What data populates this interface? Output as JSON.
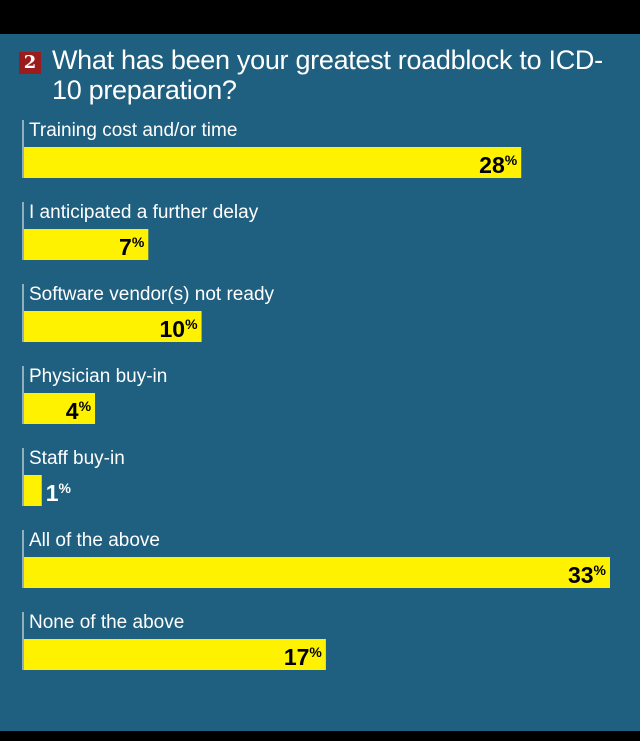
{
  "question": {
    "number": "2",
    "title": "What has been your greatest roadblock to ICD-10 preparation?"
  },
  "colors": {
    "background": "#1f5f7f",
    "bar": "#fff200",
    "band": "#000000",
    "badge": "#9b1c1c"
  },
  "chart_data": {
    "type": "bar",
    "orientation": "horizontal",
    "categories": [
      "Training cost and/or time",
      "I anticipated a further delay",
      "Software vendor(s) not ready",
      "Physician buy-in",
      "Staff buy-in",
      "All of the above",
      "None of the above"
    ],
    "values": [
      28,
      7,
      10,
      4,
      1,
      33,
      17
    ],
    "value_suffix": "%",
    "xlim": [
      0,
      33
    ],
    "grid": false,
    "legend": "none"
  }
}
